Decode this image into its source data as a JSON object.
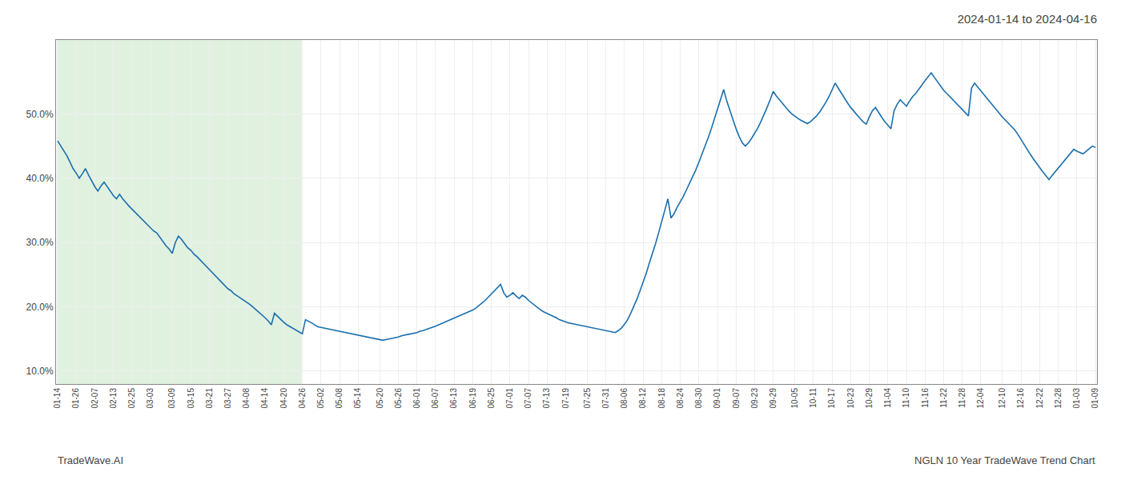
{
  "chart_data": {
    "type": "line",
    "title": "2024-01-14 to 2024-04-16",
    "annotations": [
      "TradeWave.AI",
      "NGLN 10 Year TradeWave Trend Chart"
    ],
    "grid": true,
    "color": "#1a6faf",
    "ylim": [
      0.08,
      0.615
    ],
    "yticks": [
      {
        "value": 0.1,
        "label": "10.0%"
      },
      {
        "value": 0.2,
        "label": "20.0%"
      },
      {
        "value": 0.3,
        "label": "30.0%"
      },
      {
        "value": 0.4,
        "label": "40.0%"
      },
      {
        "value": 0.5,
        "label": "50.0%"
      }
    ],
    "categories": [
      "01-14",
      null,
      null,
      null,
      null,
      null,
      "01-26",
      null,
      null,
      null,
      null,
      null,
      "02-07",
      null,
      null,
      null,
      null,
      null,
      "02-13",
      null,
      null,
      null,
      null,
      null,
      "02-25",
      null,
      null,
      null,
      null,
      null,
      "03-03",
      null,
      null,
      null,
      null,
      null,
      null,
      "03-09",
      null,
      null,
      null,
      null,
      null,
      "03-15",
      null,
      null,
      null,
      null,
      null,
      "03-21",
      null,
      null,
      null,
      null,
      null,
      "03-27",
      null,
      null,
      null,
      null,
      null,
      "04-08",
      null,
      null,
      null,
      null,
      null,
      "04-14",
      null,
      null,
      null,
      null,
      null,
      "04-20",
      null,
      null,
      null,
      null,
      null,
      "04-26",
      null,
      null,
      null,
      null,
      null,
      "05-02",
      null,
      null,
      null,
      null,
      null,
      "05-08",
      null,
      null,
      null,
      null,
      null,
      "05-14",
      null,
      null,
      null,
      null,
      null,
      null,
      "05-20",
      null,
      null,
      null,
      null,
      null,
      "05-26",
      null,
      null,
      null,
      null,
      null,
      "06-01",
      null,
      null,
      null,
      null,
      null,
      "06-07",
      null,
      null,
      null,
      null,
      null,
      "06-13",
      null,
      null,
      null,
      null,
      null,
      "06-19",
      null,
      null,
      null,
      null,
      null,
      "06-25",
      null,
      null,
      null,
      null,
      null,
      "07-01",
      null,
      null,
      null,
      null,
      null,
      "07-07",
      null,
      null,
      null,
      null,
      null,
      "07-13",
      null,
      null,
      null,
      null,
      null,
      "07-19",
      null,
      null,
      null,
      null,
      null,
      null,
      "07-25",
      null,
      null,
      null,
      null,
      null,
      "07-31",
      null,
      null,
      null,
      null,
      null,
      "08-06",
      null,
      null,
      null,
      null,
      null,
      "08-12",
      null,
      null,
      null,
      null,
      null,
      "08-18",
      null,
      null,
      null,
      null,
      null,
      "08-24",
      null,
      null,
      null,
      null,
      null,
      "08-30",
      null,
      null,
      null,
      null,
      null,
      "09-01",
      null,
      null,
      null,
      null,
      null,
      "09-07",
      null,
      null,
      null,
      null,
      null,
      "09-23",
      null,
      null,
      null,
      null,
      null,
      "09-29",
      null,
      null,
      null,
      null,
      null,
      null,
      "10-05",
      null,
      null,
      null,
      null,
      null,
      "10-11",
      null,
      null,
      null,
      null,
      null,
      "10-17",
      null,
      null,
      null,
      null,
      null,
      "10-23",
      null,
      null,
      null,
      null,
      null,
      "10-29",
      null,
      null,
      null,
      null,
      null,
      "11-04",
      null,
      null,
      null,
      null,
      null,
      "11-10",
      null,
      null,
      null,
      null,
      null,
      "11-16",
      null,
      null,
      null,
      null,
      null,
      "11-22",
      null,
      null,
      null,
      null,
      null,
      "11-28",
      null,
      null,
      null,
      null,
      null,
      "12-04",
      null,
      null,
      null,
      null,
      null,
      null,
      "12-10",
      null,
      null,
      null,
      null,
      null,
      "12-16",
      null,
      null,
      null,
      null,
      null,
      "12-22",
      null,
      null,
      null,
      null,
      null,
      "12-28",
      null,
      null,
      null,
      null,
      null,
      "01-03",
      null,
      null,
      null,
      null,
      null,
      "01-09"
    ],
    "values": [
      0.458,
      0.45,
      0.443,
      0.435,
      0.425,
      0.415,
      0.408,
      0.4,
      0.407,
      0.415,
      0.405,
      0.396,
      0.387,
      0.38,
      0.388,
      0.394,
      0.387,
      0.38,
      0.373,
      0.368,
      0.375,
      0.368,
      0.362,
      0.357,
      0.352,
      0.347,
      0.342,
      0.337,
      0.332,
      0.327,
      0.322,
      0.318,
      0.315,
      0.308,
      0.302,
      0.295,
      0.29,
      0.283,
      0.3,
      0.31,
      0.305,
      0.298,
      0.292,
      0.288,
      0.282,
      0.278,
      0.273,
      0.268,
      0.263,
      0.258,
      0.252,
      0.248,
      0.242,
      0.237,
      0.232,
      0.228,
      0.225,
      0.22,
      0.217,
      0.214,
      0.21,
      0.207,
      0.204,
      0.2,
      0.196,
      0.192,
      0.188,
      0.183,
      0.178,
      0.172,
      0.19,
      0.185,
      0.18,
      0.176,
      0.172,
      0.169,
      0.166,
      0.163,
      0.16,
      0.158,
      0.18,
      0.178,
      0.175,
      0.172,
      0.169,
      0.168,
      0.167,
      0.166,
      0.165,
      0.164,
      0.163,
      0.162,
      0.161,
      0.16,
      0.159,
      0.158,
      0.157,
      0.156,
      0.155,
      0.154,
      0.153,
      0.152,
      0.151,
      0.15,
      0.149,
      0.148,
      0.149,
      0.15,
      0.151,
      0.152,
      0.153,
      0.155,
      0.156,
      0.157,
      0.158,
      0.159,
      0.16,
      0.162,
      0.163,
      0.165,
      0.167,
      0.168,
      0.17,
      0.172,
      0.174,
      0.176,
      0.178,
      0.18,
      0.182,
      0.184,
      0.186,
      0.188,
      0.19,
      0.192,
      0.195,
      0.198,
      0.202,
      0.205,
      0.21,
      0.215,
      0.22,
      0.225,
      0.23,
      0.235,
      0.222,
      0.215,
      0.218,
      0.222,
      0.217,
      0.213,
      0.218,
      0.215,
      0.21,
      0.206,
      0.202,
      0.198,
      0.195,
      0.192,
      0.19,
      0.188,
      0.185,
      0.183,
      0.18,
      0.178,
      0.176,
      0.175,
      0.174,
      0.173,
      0.172,
      0.171,
      0.17,
      0.169,
      0.168,
      0.167,
      0.166,
      0.165,
      0.164,
      0.163,
      0.162,
      0.161,
      0.16,
      0.163,
      0.167,
      0.173,
      0.18,
      0.19,
      0.2,
      0.212,
      0.225,
      0.238,
      0.252,
      0.268,
      0.282,
      0.298,
      0.315,
      0.332,
      0.35,
      0.368,
      0.338,
      0.345,
      0.355,
      0.363,
      0.372,
      0.382,
      0.392,
      0.402,
      0.413,
      0.425,
      0.437,
      0.45,
      0.463,
      0.477,
      0.492,
      0.507,
      0.522,
      0.538,
      0.52,
      0.505,
      0.49,
      0.477,
      0.465,
      0.455,
      0.45,
      0.455,
      0.462,
      0.47,
      0.478,
      0.488,
      0.498,
      0.51,
      0.522,
      0.535,
      0.528,
      0.522,
      0.516,
      0.51,
      0.505,
      0.5,
      0.496,
      0.493,
      0.49,
      0.487,
      0.485,
      0.488,
      0.492,
      0.497,
      0.503,
      0.51,
      0.518,
      0.527,
      0.537,
      0.548,
      0.54,
      0.532,
      0.524,
      0.517,
      0.51,
      0.504,
      0.498,
      0.493,
      0.488,
      0.484,
      0.495,
      0.505,
      0.51,
      0.502,
      0.495,
      0.488,
      0.482,
      0.477,
      0.505,
      0.515,
      0.522,
      0.517,
      0.512,
      0.52,
      0.527,
      0.532,
      0.538,
      0.545,
      0.552,
      0.558,
      0.564,
      0.557,
      0.55,
      0.543,
      0.537,
      0.532,
      0.527,
      0.522,
      0.518,
      0.513,
      0.508,
      0.502,
      0.497,
      0.54,
      0.548,
      0.542,
      0.536,
      0.53,
      0.524,
      0.518,
      0.512,
      0.506,
      0.5,
      0.495,
      0.49,
      0.485,
      0.48,
      0.475,
      0.468,
      0.46,
      0.452,
      0.444,
      0.437,
      0.43,
      0.423,
      0.416,
      0.41,
      0.404,
      0.398,
      0.404,
      0.41,
      0.416,
      0.422,
      0.428,
      0.434,
      0.44,
      0.445,
      0.442,
      0.44,
      0.438,
      0.442,
      0.446,
      0.45,
      0.448
    ]
  }
}
